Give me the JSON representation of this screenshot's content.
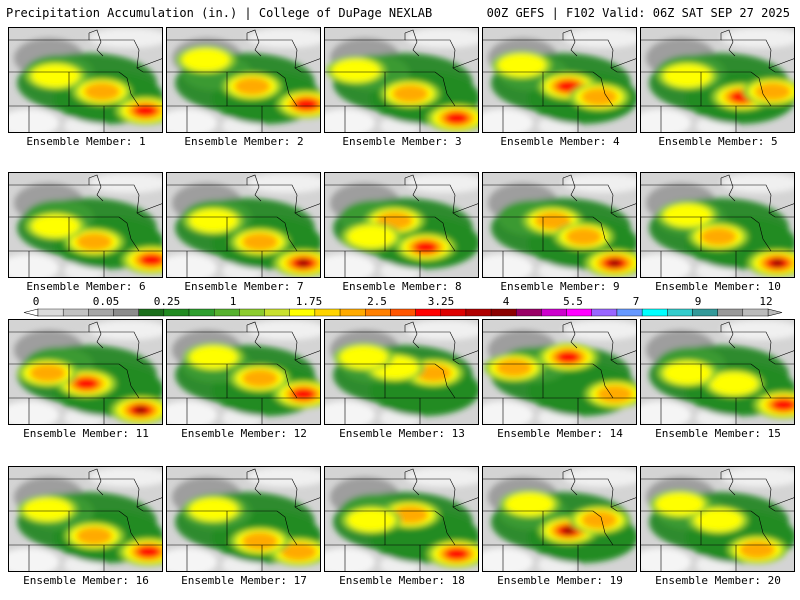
{
  "header": {
    "left": "Precipitation Accumulation (in.) | College of DuPage NEXLAB",
    "right": "00Z GEFS | F102 Valid: 06Z SAT SEP 27 2025"
  },
  "legend": {
    "tick_labels": [
      "0",
      "0.05",
      "0.25",
      "1",
      "1.75",
      "2.5",
      "3.25",
      "4",
      "5.5",
      "7",
      "9",
      "12"
    ],
    "colors": [
      "#dcdcdc",
      "#c2c2c2",
      "#a6a6a6",
      "#8c8c8c",
      "#1b6e1b",
      "#228b22",
      "#2e9e2e",
      "#56b12e",
      "#8ccc2e",
      "#c8e02e",
      "#ffff00",
      "#ffd400",
      "#ffaa00",
      "#ff7f00",
      "#ff5500",
      "#ff0000",
      "#dd0000",
      "#b00000",
      "#8b0000",
      "#990066",
      "#cc00cc",
      "#ff00ff",
      "#9966ff",
      "#6699ff",
      "#00ffff",
      "#33cccc",
      "#339999",
      "#999999",
      "#bbbbbb"
    ]
  },
  "panels": [
    {
      "label": "Ensemble Member: 1",
      "hot": [
        [
          0.88,
          0.78,
          3
        ],
        [
          0.6,
          0.6,
          2
        ],
        [
          0.3,
          0.45,
          1
        ]
      ]
    },
    {
      "label": "Ensemble Member: 2",
      "hot": [
        [
          0.9,
          0.72,
          3
        ],
        [
          0.55,
          0.55,
          2
        ],
        [
          0.25,
          0.3,
          1
        ]
      ]
    },
    {
      "label": "Ensemble Member: 3",
      "hot": [
        [
          0.85,
          0.85,
          3
        ],
        [
          0.55,
          0.62,
          2
        ],
        [
          0.2,
          0.4,
          1
        ]
      ]
    },
    {
      "label": "Ensemble Member: 4",
      "hot": [
        [
          0.55,
          0.55,
          3
        ],
        [
          0.75,
          0.65,
          2
        ],
        [
          0.25,
          0.35,
          1
        ]
      ]
    },
    {
      "label": "Ensemble Member: 5",
      "hot": [
        [
          0.65,
          0.65,
          3
        ],
        [
          0.85,
          0.6,
          2
        ],
        [
          0.3,
          0.45,
          1
        ]
      ]
    },
    {
      "label": "Ensemble Member: 6",
      "hot": [
        [
          0.92,
          0.82,
          3
        ],
        [
          0.55,
          0.65,
          2
        ],
        [
          0.3,
          0.5,
          1
        ]
      ]
    },
    {
      "label": "Ensemble Member: 7",
      "hot": [
        [
          0.88,
          0.85,
          4
        ],
        [
          0.6,
          0.65,
          2
        ],
        [
          0.3,
          0.45,
          1
        ]
      ]
    },
    {
      "label": "Ensemble Member: 8",
      "hot": [
        [
          0.65,
          0.7,
          3
        ],
        [
          0.45,
          0.45,
          2
        ],
        [
          0.3,
          0.6,
          1
        ]
      ]
    },
    {
      "label": "Ensemble Member: 9",
      "hot": [
        [
          0.85,
          0.85,
          4
        ],
        [
          0.45,
          0.45,
          2
        ],
        [
          0.65,
          0.6,
          2
        ]
      ]
    },
    {
      "label": "Ensemble Member: 10",
      "hot": [
        [
          0.88,
          0.85,
          4
        ],
        [
          0.5,
          0.6,
          2
        ],
        [
          0.3,
          0.4,
          1
        ]
      ]
    },
    {
      "label": "Ensemble Member: 11",
      "hot": [
        [
          0.85,
          0.85,
          4
        ],
        [
          0.5,
          0.6,
          3
        ],
        [
          0.25,
          0.5,
          2
        ]
      ]
    },
    {
      "label": "Ensemble Member: 12",
      "hot": [
        [
          0.88,
          0.7,
          3
        ],
        [
          0.6,
          0.55,
          2
        ],
        [
          0.3,
          0.35,
          1
        ]
      ]
    },
    {
      "label": "Ensemble Member: 13",
      "hot": [
        [
          0.7,
          0.5,
          2
        ],
        [
          0.45,
          0.45,
          1
        ],
        [
          0.25,
          0.35,
          1
        ]
      ]
    },
    {
      "label": "Ensemble Member: 14",
      "hot": [
        [
          0.55,
          0.35,
          3
        ],
        [
          0.85,
          0.7,
          2
        ],
        [
          0.2,
          0.45,
          2
        ]
      ]
    },
    {
      "label": "Ensemble Member: 15",
      "hot": [
        [
          0.92,
          0.8,
          3
        ],
        [
          0.6,
          0.6,
          1
        ],
        [
          0.3,
          0.5,
          1
        ]
      ]
    },
    {
      "label": "Ensemble Member: 16",
      "hot": [
        [
          0.9,
          0.8,
          3
        ],
        [
          0.55,
          0.65,
          2
        ],
        [
          0.25,
          0.4,
          1
        ]
      ]
    },
    {
      "label": "Ensemble Member: 17",
      "hot": [
        [
          0.85,
          0.8,
          2
        ],
        [
          0.6,
          0.7,
          2
        ],
        [
          0.3,
          0.4,
          1
        ]
      ]
    },
    {
      "label": "Ensemble Member: 18",
      "hot": [
        [
          0.85,
          0.82,
          3
        ],
        [
          0.55,
          0.45,
          2
        ],
        [
          0.3,
          0.5,
          1
        ]
      ]
    },
    {
      "label": "Ensemble Member: 19",
      "hot": [
        [
          0.55,
          0.6,
          4
        ],
        [
          0.75,
          0.5,
          2
        ],
        [
          0.3,
          0.35,
          1
        ]
      ]
    },
    {
      "label": "Ensemble Member: 20",
      "hot": [
        [
          0.75,
          0.78,
          2
        ],
        [
          0.5,
          0.5,
          1
        ],
        [
          0.25,
          0.35,
          1
        ]
      ]
    }
  ]
}
